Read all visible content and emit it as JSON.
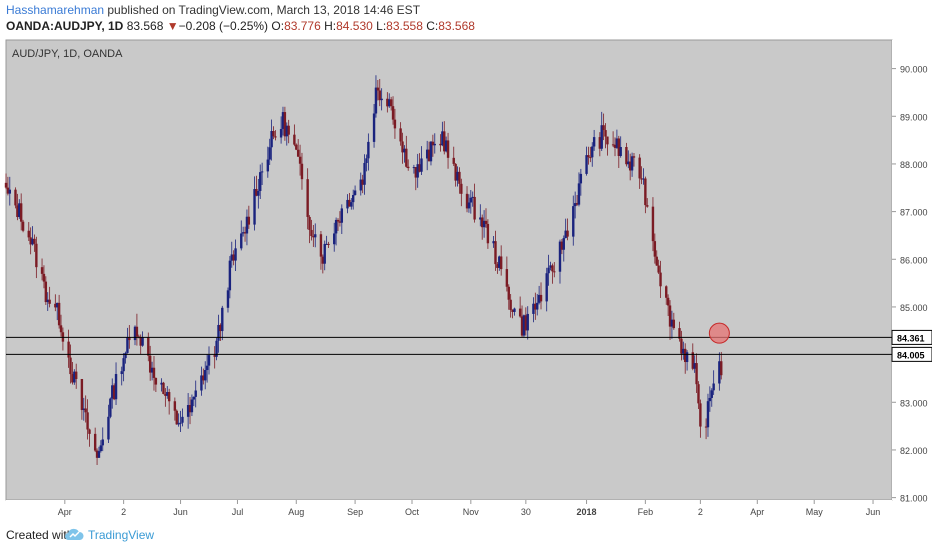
{
  "header": {
    "author": "Hasshamarehman",
    "published": " published on TradingView.com, March 13, 2018 14:46 EST",
    "symbol": "OANDA:AUDJPY, 1D",
    "last": "83.568",
    "arrow": "▼",
    "change": "−0.208 (−0.25%)",
    "open_label": "O:",
    "open": "83.776",
    "high_label": "H:",
    "high": "84.530",
    "low_label": "L:",
    "low": "83.558",
    "close_label": "C:",
    "close": "83.568"
  },
  "footer": {
    "created_with": "Created with",
    "brand": "TradingView"
  },
  "colors": {
    "background": "#c9c9c9",
    "up": "#1a237e",
    "down": "#7b1b24",
    "line": "#000000",
    "circle": "#e57373"
  },
  "chart_data": {
    "type": "candlestick",
    "title": "AUD/JPY, 1D, OANDA",
    "xlabel": "",
    "ylabel": "",
    "x_ticks": [
      "Apr",
      "2",
      "Jun",
      "Jul",
      "Aug",
      "Sep",
      "Oct",
      "Nov",
      "30",
      "2018",
      "Feb",
      "2",
      "Apr",
      "May",
      "Jun"
    ],
    "y_ticks": [
      "90.000",
      "89.000",
      "88.000",
      "87.000",
      "86.000",
      "85.000",
      "83.000",
      "82.000",
      "81.000"
    ],
    "ylim": [
      80.95,
      90.6
    ],
    "grid": false,
    "horizontal_levels": [
      {
        "label": "84.361",
        "value": 84.361
      },
      {
        "label": "84.005",
        "value": 84.005
      }
    ],
    "annotation": {
      "type": "circle",
      "date": "2018-03-12",
      "price": 84.45
    },
    "series": [
      {
        "anchors": [
          [
            "2017-03-01",
            87.4
          ],
          [
            "2017-03-08",
            87.0
          ],
          [
            "2017-03-15",
            86.3
          ],
          [
            "2017-03-22",
            85.3
          ],
          [
            "2017-03-29",
            84.8
          ],
          [
            "2017-04-05",
            83.6
          ],
          [
            "2017-04-12",
            82.6
          ],
          [
            "2017-04-18",
            81.8
          ],
          [
            "2017-04-25",
            83.0
          ],
          [
            "2017-05-02",
            84.0
          ],
          [
            "2017-05-09",
            84.6
          ],
          [
            "2017-05-16",
            83.8
          ],
          [
            "2017-05-23",
            83.2
          ],
          [
            "2017-05-30",
            82.6
          ],
          [
            "2017-06-06",
            82.8
          ],
          [
            "2017-06-13",
            83.6
          ],
          [
            "2017-06-20",
            84.2
          ],
          [
            "2017-06-27",
            85.8
          ],
          [
            "2017-07-04",
            86.5
          ],
          [
            "2017-07-11",
            87.5
          ],
          [
            "2017-07-18",
            88.4
          ],
          [
            "2017-07-25",
            88.9
          ],
          [
            "2017-08-01",
            88.2
          ],
          [
            "2017-08-08",
            86.8
          ],
          [
            "2017-08-15",
            86.1
          ],
          [
            "2017-08-22",
            86.8
          ],
          [
            "2017-08-29",
            87.3
          ],
          [
            "2017-09-05",
            87.7
          ],
          [
            "2017-09-12",
            89.5
          ],
          [
            "2017-09-19",
            89.4
          ],
          [
            "2017-09-26",
            88.3
          ],
          [
            "2017-10-03",
            87.8
          ],
          [
            "2017-10-10",
            88.2
          ],
          [
            "2017-10-17",
            88.6
          ],
          [
            "2017-10-24",
            87.7
          ],
          [
            "2017-10-31",
            87.2
          ],
          [
            "2017-11-07",
            86.8
          ],
          [
            "2017-11-14",
            86.1
          ],
          [
            "2017-11-21",
            85.2
          ],
          [
            "2017-11-28",
            84.6
          ],
          [
            "2017-12-05",
            85.0
          ],
          [
            "2017-12-12",
            85.6
          ],
          [
            "2017-12-19",
            86.3
          ],
          [
            "2017-12-26",
            87.2
          ],
          [
            "2018-01-02",
            88.2
          ],
          [
            "2018-01-09",
            88.6
          ],
          [
            "2018-01-16",
            88.4
          ],
          [
            "2018-01-23",
            88.0
          ],
          [
            "2018-01-30",
            87.8
          ],
          [
            "2018-02-06",
            86.2
          ],
          [
            "2018-02-13",
            84.9
          ],
          [
            "2018-02-20",
            84.2
          ],
          [
            "2018-02-27",
            83.6
          ],
          [
            "2018-03-02",
            82.4
          ],
          [
            "2018-03-06",
            82.8
          ],
          [
            "2018-03-09",
            83.5
          ],
          [
            "2018-03-12",
            84.0
          ],
          [
            "2018-03-13",
            83.568
          ]
        ]
      }
    ]
  }
}
